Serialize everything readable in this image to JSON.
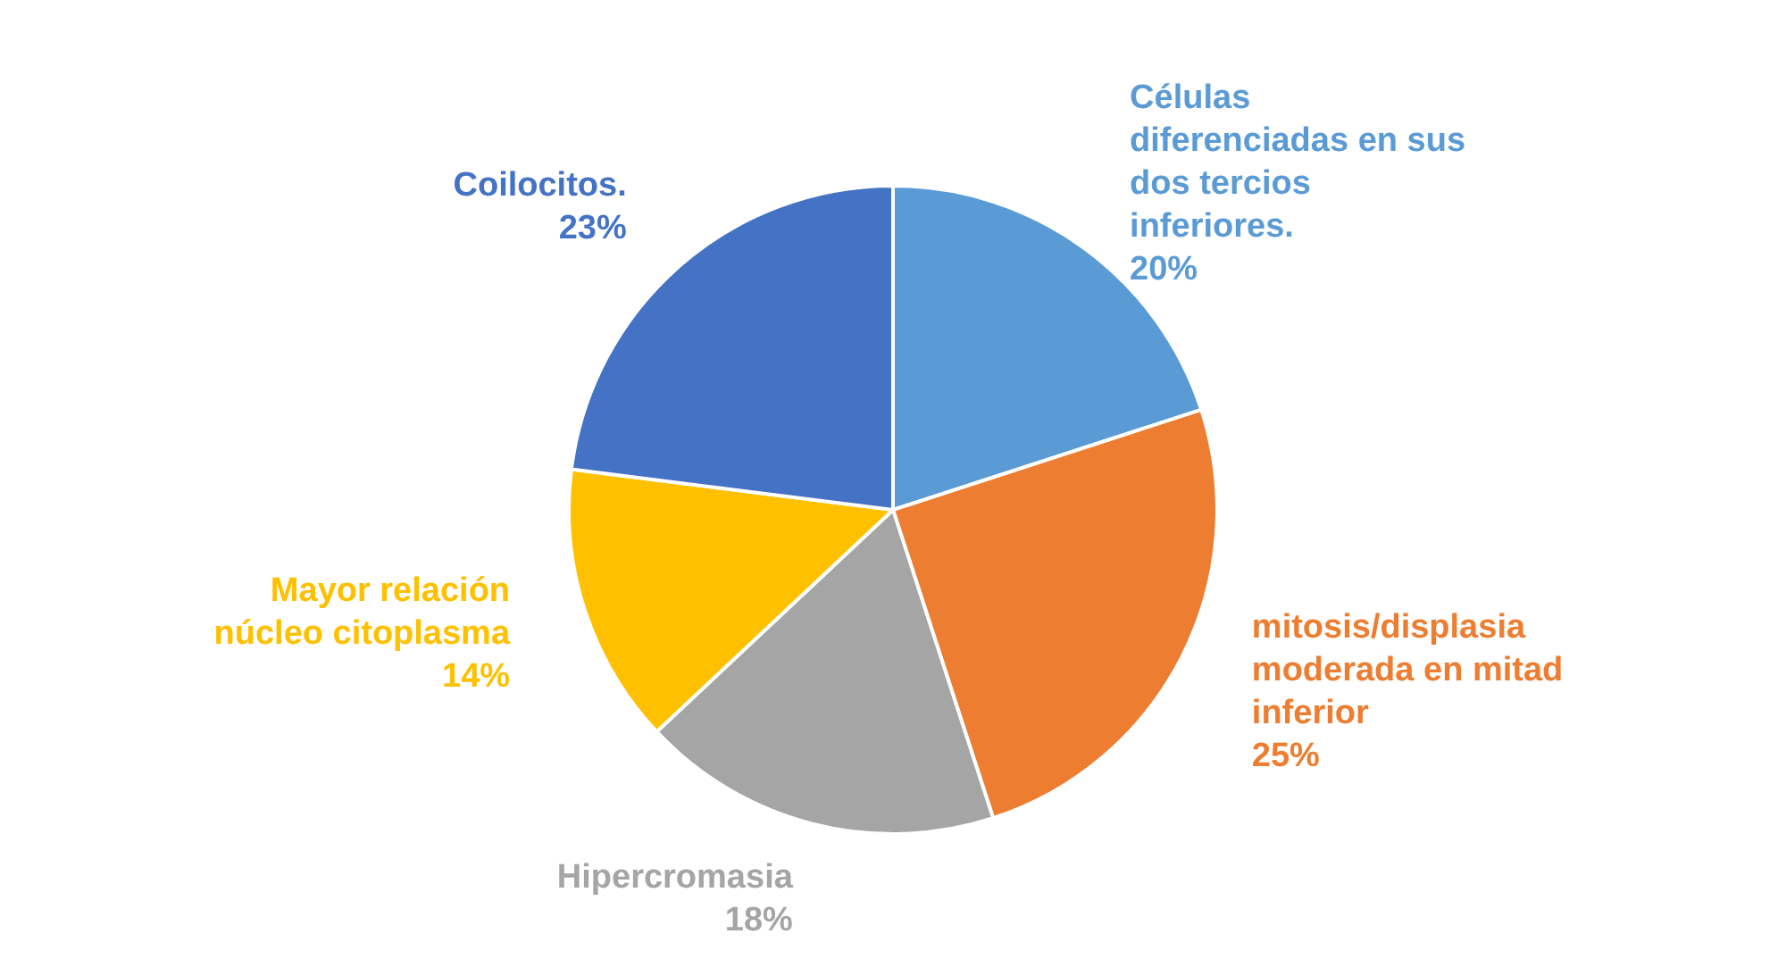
{
  "chart_data": {
    "type": "pie",
    "categories": [
      "Células diferenciadas en sus dos tercios inferiores.",
      "mitosis/displasia moderada en mitad inferior",
      "Hipercromasia",
      "Mayor relación núcleo citoplasma",
      "Coilocitos."
    ],
    "values": [
      20,
      25,
      18,
      14,
      23
    ],
    "value_labels": [
      "20%",
      "25%",
      "18%",
      "14%",
      "23%"
    ],
    "colors": [
      "#5b9bd5",
      "#ed7d31",
      "#a5a5a5",
      "#ffc000",
      "#4472c4"
    ],
    "legend": false
  }
}
